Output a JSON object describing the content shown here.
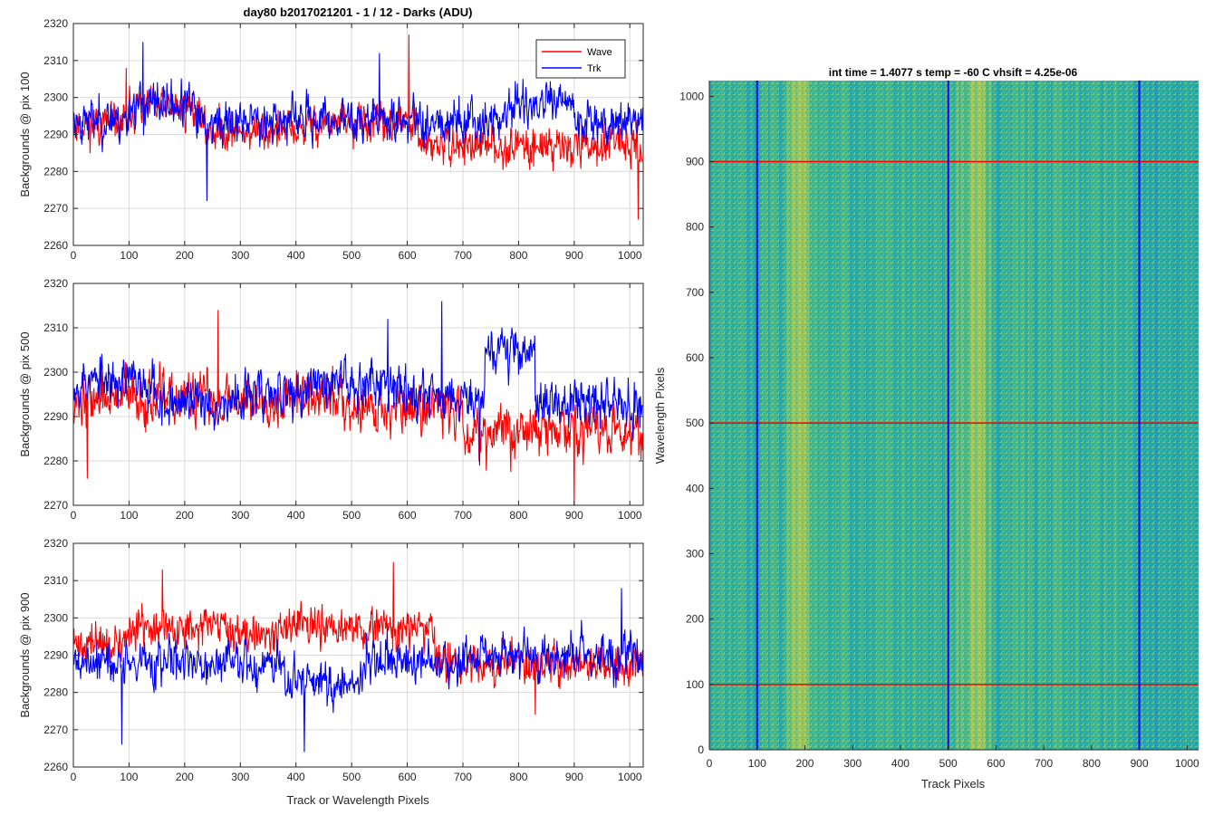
{
  "figure": {
    "title": "day80 b2017021201 - 1 / 12 - Darks (ADU)",
    "image_title": "int time = 1.4077 s    temp = -60 C    vhsift = 4.25e-06",
    "line_xlabel": "Track or Wavelength Pixels",
    "image_xlabel": "Track Pixels",
    "image_ylabel": "Wavelength Pixels"
  },
  "colors": {
    "wave": "#ff0000",
    "trk": "#0000ff",
    "grid": "#d9d9d9",
    "axis": "#262626"
  },
  "chart_data": [
    {
      "type": "line",
      "ylabel": "Backgrounds @ pix 100",
      "xlim": [
        0,
        1024
      ],
      "ylim": [
        2260,
        2320
      ],
      "xticks": [
        "0",
        "100",
        "200",
        "300",
        "400",
        "500",
        "600",
        "700",
        "800",
        "900",
        "1000"
      ],
      "yticks": [
        "2260",
        "2270",
        "2280",
        "2290",
        "2300",
        "2310",
        "2320"
      ],
      "grid": true,
      "legend": {
        "location": "top-right"
      },
      "series": [
        {
          "name": "Wave",
          "mean": 2293,
          "noise": 5,
          "seed": 11,
          "features": [
            [
              100,
              230,
              2297
            ],
            [
              230,
              420,
              2291
            ],
            [
              420,
              620,
              2293
            ],
            [
              620,
              1024,
              2287
            ]
          ],
          "spikes": [
            [
              603,
              2317
            ],
            [
              1015,
              2267
            ],
            [
              95,
              2308
            ]
          ]
        },
        {
          "name": "Trk",
          "mean": 2294,
          "noise": 5.5,
          "seed": 23,
          "features": [
            [
              100,
              220,
              2298
            ],
            [
              220,
              300,
              2293
            ],
            [
              780,
              900,
              2298
            ],
            [
              900,
              1024,
              2294
            ]
          ],
          "spikes": [
            [
              125,
              2315
            ],
            [
              550,
              2312
            ],
            [
              240,
              2272
            ]
          ]
        }
      ]
    },
    {
      "type": "line",
      "ylabel": "Backgrounds @ pix 500",
      "xlim": [
        0,
        1024
      ],
      "ylim": [
        2270,
        2320
      ],
      "xticks": [
        "0",
        "100",
        "200",
        "300",
        "400",
        "500",
        "600",
        "700",
        "800",
        "900",
        "1000"
      ],
      "yticks": [
        "2270",
        "2280",
        "2290",
        "2300",
        "2310",
        "2320"
      ],
      "grid": true,
      "series": [
        {
          "name": "Wave",
          "mean": 2292,
          "noise": 5.5,
          "seed": 37,
          "features": [
            [
              0,
              300,
              2294
            ],
            [
              300,
              500,
              2294
            ],
            [
              700,
              1024,
              2287
            ]
          ],
          "spikes": [
            [
              260,
              2314
            ],
            [
              900,
              2270
            ],
            [
              25,
              2276
            ]
          ]
        },
        {
          "name": "Trk",
          "mean": 2295,
          "noise": 5,
          "seed": 53,
          "features": [
            [
              0,
              150,
              2298
            ],
            [
              150,
              300,
              2293
            ],
            [
              430,
              600,
              2298
            ],
            [
              740,
              830,
              2305
            ],
            [
              830,
              1024,
              2293
            ]
          ],
          "spikes": [
            [
              662,
              2316
            ],
            [
              565,
              2312
            ],
            [
              730,
              2279
            ]
          ]
        }
      ]
    },
    {
      "type": "line",
      "ylabel": "Backgrounds @ pix 900",
      "xlim": [
        0,
        1024
      ],
      "ylim": [
        2260,
        2320
      ],
      "xticks": [
        "0",
        "100",
        "200",
        "300",
        "400",
        "500",
        "600",
        "700",
        "800",
        "900",
        "1000"
      ],
      "yticks": [
        "2260",
        "2270",
        "2280",
        "2290",
        "2300",
        "2310",
        "2320"
      ],
      "grid": true,
      "series": [
        {
          "name": "Wave",
          "mean": 2295,
          "noise": 5,
          "seed": 71,
          "features": [
            [
              0,
              100,
              2293
            ],
            [
              100,
              650,
              2297
            ],
            [
              650,
              1024,
              2288
            ]
          ],
          "spikes": [
            [
              575,
              2315
            ],
            [
              160,
              2313
            ],
            [
              830,
              2274
            ]
          ]
        },
        {
          "name": "Trk",
          "mean": 2288,
          "noise": 5.5,
          "seed": 89,
          "features": [
            [
              380,
              520,
              2282
            ],
            [
              520,
              700,
              2288
            ],
            [
              700,
              1024,
              2290
            ]
          ],
          "spikes": [
            [
              415,
              2264
            ],
            [
              87,
              2266
            ],
            [
              985,
              2308
            ]
          ]
        }
      ]
    },
    {
      "type": "heatmap",
      "title": "int time = 1.4077 s    temp = -60 C    vhsift = 4.25e-06",
      "xlabel": "Track Pixels",
      "ylabel": "Wavelength Pixels",
      "xlim": [
        0,
        1024
      ],
      "ylim": [
        0,
        1024
      ],
      "xticks": [
        "0",
        "100",
        "200",
        "300",
        "400",
        "500",
        "600",
        "700",
        "800",
        "900",
        "1000"
      ],
      "yticks": [
        "0",
        "100",
        "200",
        "300",
        "400",
        "500",
        "600",
        "700",
        "800",
        "900",
        "1000"
      ],
      "colormap": "parula",
      "bright_bands": [
        [
          150,
          220
        ],
        [
          510,
          600
        ]
      ],
      "vertical_lines": {
        "at": [
          100,
          500,
          900
        ],
        "color": "#0000ff"
      },
      "horizontal_lines": {
        "at": [
          100,
          500,
          900
        ],
        "color": "#ff0000"
      }
    }
  ]
}
